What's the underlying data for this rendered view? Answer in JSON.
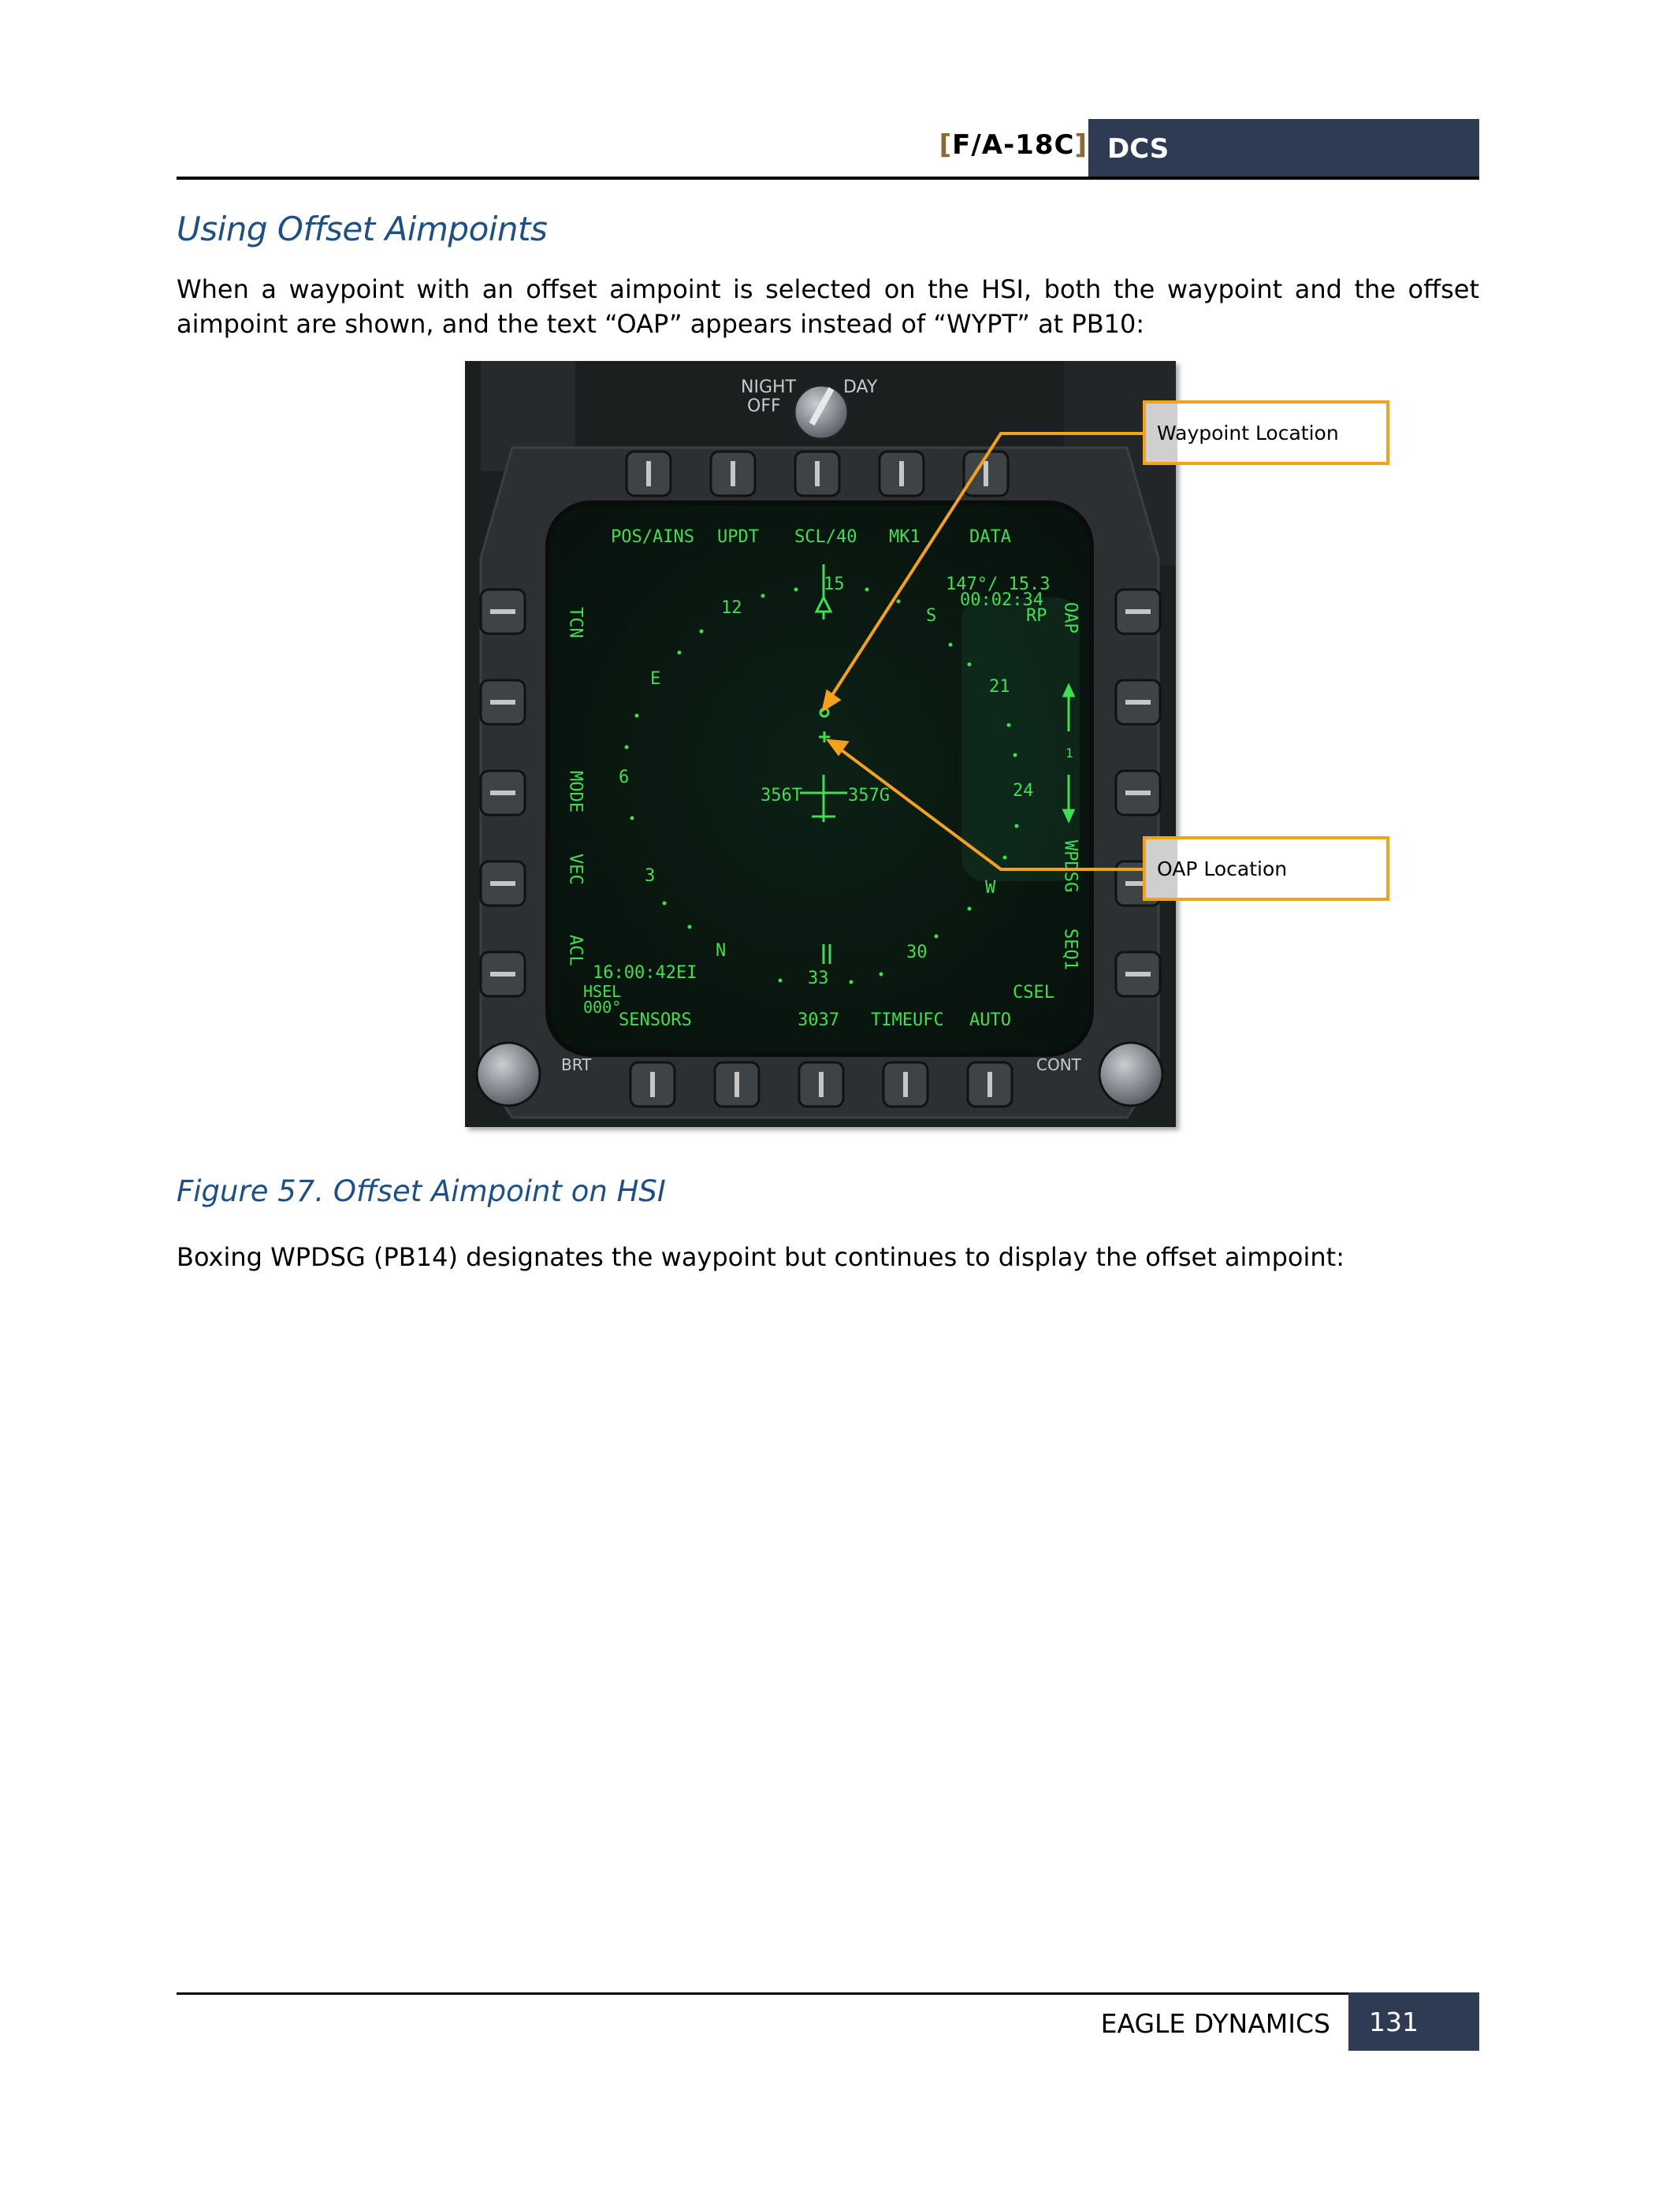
{
  "header": {
    "aircraft": "F/A-18C",
    "bracket_open": "[",
    "bracket_close": "]",
    "badge": "DCS"
  },
  "section_title": "Using Offset Aimpoints",
  "paragraph1": "When a waypoint with an offset aimpoint is selected on the HSI, both the waypoint and the offset aimpoint are shown, and the text “OAP” appears instead of “WYPT” at PB10:",
  "figure": {
    "caption": "Figure 57. Offset Aimpoint on HSI",
    "callouts": {
      "waypoint": "Waypoint Location",
      "oap": "OAP Location"
    },
    "display": {
      "switch_label_top": "NIGHT",
      "switch_label_day": "DAY",
      "switch_label_off": "OFF",
      "top_labels": [
        "POS/AINS",
        "UPDT",
        "SCL/40",
        "MK1",
        "DATA"
      ],
      "bottom_labels": [
        "SENSORS",
        "3037",
        "TIMEUFC",
        "AUTO"
      ],
      "left_labels": [
        "TCN",
        "MODE",
        "VEC",
        "ACL"
      ],
      "right_labels": [
        "OAP",
        "WPDSG",
        "SEQ1"
      ],
      "bearing_distance": "147°/ 15.3",
      "time_to_go": "00:02:34",
      "rp_label": "RP",
      "time": "16:00:42EI",
      "hsel": "HSEL",
      "hsel_value": "000°",
      "csel": "CSEL",
      "brt": "BRT",
      "cont": "CONT",
      "heading_true": "356T",
      "ground_track": "357G",
      "sequence_number": "1",
      "compass_labels": [
        "15",
        "S",
        "21",
        "24",
        "W",
        "30",
        "33",
        "N",
        "3",
        "6",
        "E",
        "12"
      ],
      "display_color": "#3fe04f"
    }
  },
  "paragraph2": "Boxing WPDSG (PB14) designates the waypoint but continues to display the offset aimpoint:",
  "footer": {
    "company": "EAGLE DYNAMICS",
    "page": "131"
  }
}
